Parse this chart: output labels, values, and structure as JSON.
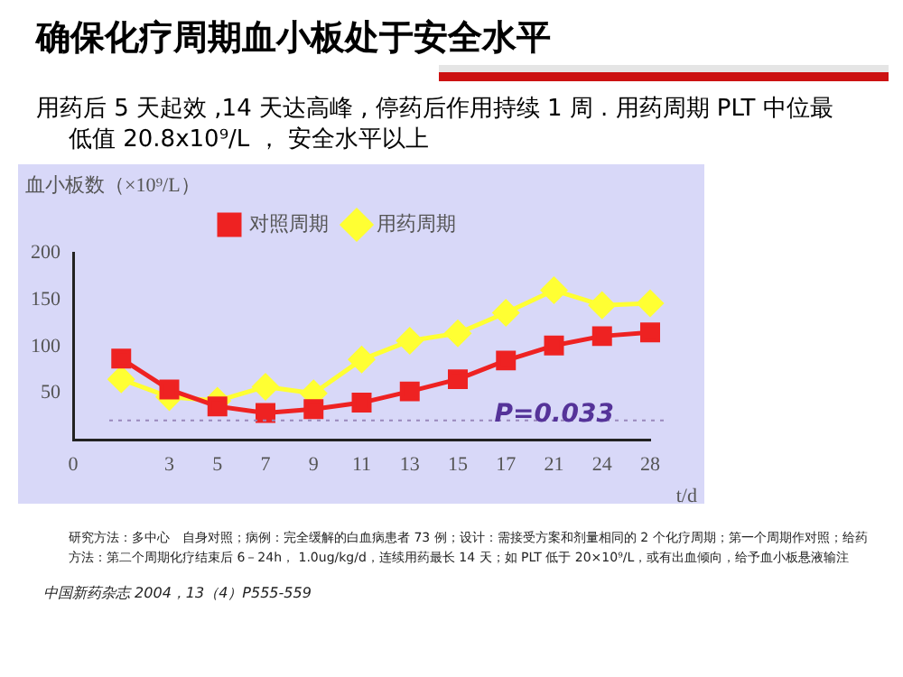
{
  "chart_data": {
    "type": "line",
    "title": "确保化疗周期血小板处于安全水平",
    "subtitle": "用药后 5 天起效 ,14 天达高峰 , 停药后作用持续 1 周 . 用药周期 PLT 中位最低值 20.8x10⁹/L ， 安全水平以上",
    "ylabel": "血小板数（×10⁹/L）",
    "xlabel": "t/d",
    "categories": [
      "0",
      null,
      "3",
      "5",
      "7",
      "9",
      "11",
      "13",
      "15",
      "17",
      "21",
      "24",
      "28"
    ],
    "series": [
      {
        "name": "用药周期",
        "color": "#ffff33",
        "marker": "diamond",
        "values": [
          null,
          65,
          46,
          42,
          57,
          50,
          86,
          106,
          114,
          136,
          160,
          144,
          146
        ]
      },
      {
        "name": "对照周期",
        "color": "#ee2222",
        "marker": "square",
        "values": [
          null,
          87,
          54,
          36,
          29,
          33,
          40,
          52,
          65,
          85,
          101,
          111,
          115
        ]
      }
    ],
    "ylim": [
      0,
      200
    ],
    "yticks": [
      50,
      100,
      150,
      200
    ],
    "grid": false,
    "legend": "top",
    "line_style": "solid",
    "ref_lines": [
      {
        "axis": "y",
        "value": 21,
        "color": "#9988bb",
        "line_style": "dotted"
      }
    ],
    "annotations": [
      "P=0.033",
      "研究方法：多中心　自身对照；病例：完全缓解的白血病患者 73 例；设计：需接受方案和剂量相同的 2 个化疗周期；第一个周期作对照；给药方法：第二个周期化疗结束后 6－24h， 1.0ug/kg/d，连续用药最长 14 天；如 PLT 低于 20×10⁹/L，或有出血倾向，给予血小板悬液输注",
      "中国新药杂志 2004，13（4）P555-559"
    ]
  }
}
